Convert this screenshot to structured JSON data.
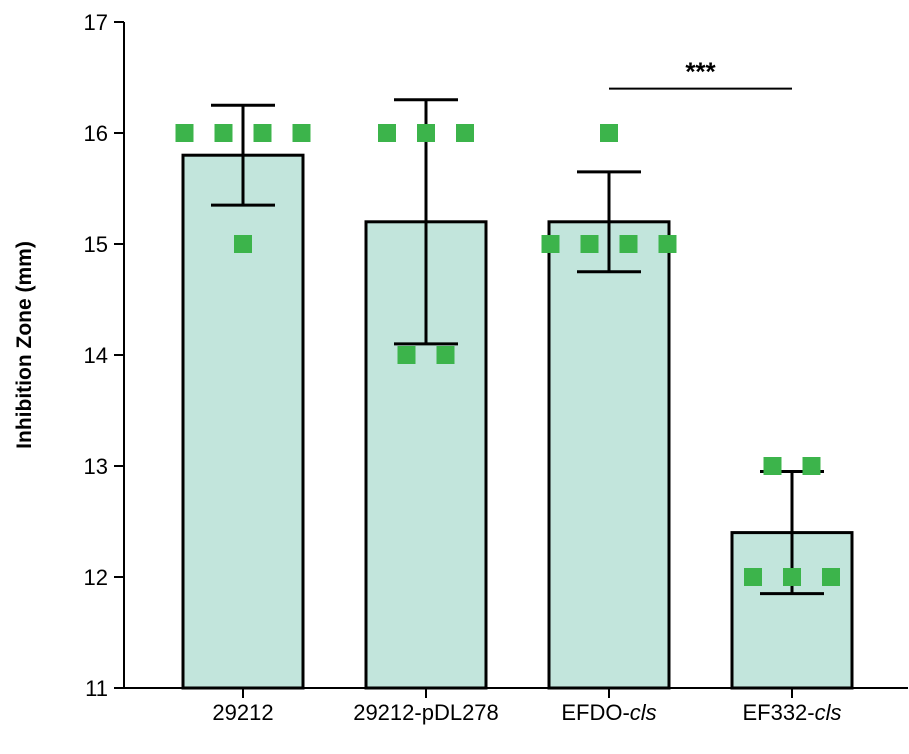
{
  "chart_data": {
    "type": "bar",
    "title": "",
    "xlabel": "",
    "ylabel": "Inhibition Zone (mm)",
    "ylim": [
      11,
      17
    ],
    "yticks": [
      11,
      12,
      13,
      14,
      15,
      16,
      17
    ],
    "grid": false,
    "categories": [
      {
        "base": "29212",
        "italic": ""
      },
      {
        "base": "29212-pDL278",
        "italic": ""
      },
      {
        "base": "EFDO-",
        "italic": "cls"
      },
      {
        "base": "EF332-",
        "italic": "cls"
      }
    ],
    "values": [
      15.8,
      15.2,
      15.2,
      12.4
    ],
    "error_low": [
      15.35,
      14.1,
      14.75,
      11.85
    ],
    "error_high": [
      16.25,
      16.3,
      15.65,
      12.95
    ],
    "points": [
      [
        16,
        16,
        16,
        16,
        15
      ],
      [
        16,
        16,
        16,
        14,
        14
      ],
      [
        16,
        15,
        15,
        15,
        15
      ],
      [
        13,
        13,
        12,
        12,
        12
      ]
    ],
    "bar_color": "#c2e5dc",
    "bar_edge_color": "#000000",
    "point_color": "#3cb44b",
    "significance": [
      {
        "from": 2,
        "to": 3,
        "label": "***",
        "y": 16.4
      }
    ]
  }
}
